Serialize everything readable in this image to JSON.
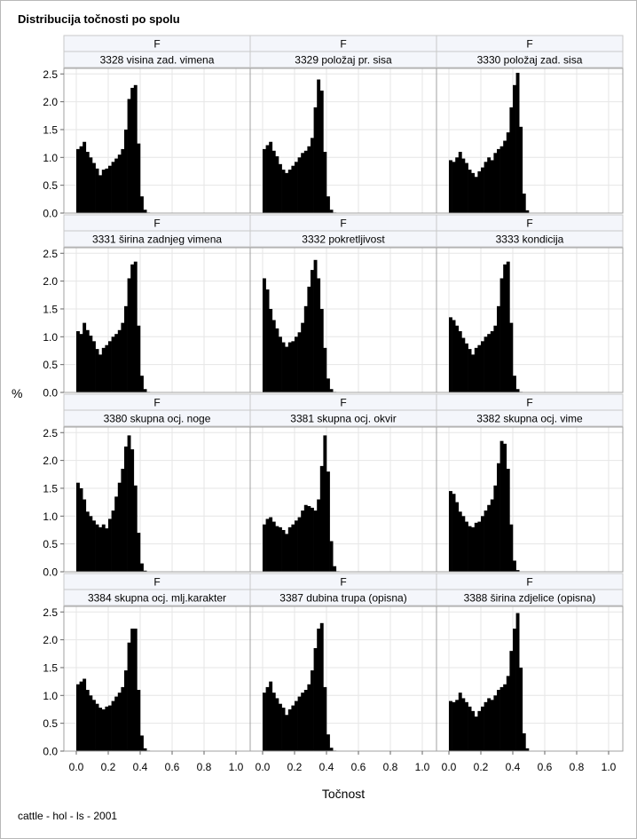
{
  "title": "Distribucija točnosti po spolu",
  "footnote": "cattle - hol - ls - 2001",
  "colors": {
    "bar": "#000000",
    "header_bg": "#f4f6fb",
    "grid": "#e6e6e6",
    "border": "#a0a0a0"
  },
  "chart_data": {
    "type": "bar",
    "layout": "panel 4x3 histograms",
    "xlabel": "Točnost",
    "ylabel": "%",
    "xlim": [
      0.0,
      1.0
    ],
    "ylim": [
      0.0,
      2.6
    ],
    "xticks": [
      "0.0",
      "0.2",
      "0.4",
      "0.6",
      "0.8",
      "1.0"
    ],
    "yticks": [
      "0.0",
      "0.5",
      "1.0",
      "1.5",
      "2.0",
      "2.5"
    ],
    "panels": [
      {
        "group": "F",
        "name": "3328 visina zad. vimena",
        "x": [
          0.0,
          0.02,
          0.04,
          0.06,
          0.08,
          0.1,
          0.12,
          0.14,
          0.16,
          0.18,
          0.2,
          0.22,
          0.24,
          0.26,
          0.28,
          0.3,
          0.32,
          0.34,
          0.36,
          0.38,
          0.4,
          0.42,
          0.44
        ],
        "values": [
          1.15,
          1.2,
          1.28,
          1.1,
          1.0,
          0.9,
          0.8,
          0.68,
          0.78,
          0.8,
          0.85,
          0.92,
          0.98,
          1.05,
          1.15,
          1.5,
          2.05,
          2.25,
          2.3,
          1.25,
          0.3,
          0.06,
          0.01
        ]
      },
      {
        "group": "F",
        "name": "3329 položaj pr. sisa",
        "x": [
          0.0,
          0.02,
          0.04,
          0.06,
          0.08,
          0.1,
          0.12,
          0.14,
          0.16,
          0.18,
          0.2,
          0.22,
          0.24,
          0.26,
          0.28,
          0.3,
          0.32,
          0.34,
          0.36,
          0.38,
          0.4,
          0.42,
          0.44
        ],
        "values": [
          1.15,
          1.22,
          1.28,
          1.12,
          1.02,
          0.88,
          0.78,
          0.72,
          0.78,
          0.85,
          0.92,
          1.0,
          1.08,
          1.12,
          1.2,
          1.35,
          1.9,
          2.4,
          2.2,
          1.1,
          0.3,
          0.06,
          0.01
        ]
      },
      {
        "group": "F",
        "name": "3330 položaj zad. sisa",
        "x": [
          0.0,
          0.02,
          0.04,
          0.06,
          0.08,
          0.1,
          0.12,
          0.14,
          0.16,
          0.18,
          0.2,
          0.22,
          0.24,
          0.26,
          0.28,
          0.3,
          0.32,
          0.34,
          0.36,
          0.38,
          0.4,
          0.42,
          0.44,
          0.46,
          0.48
        ],
        "values": [
          0.95,
          0.92,
          1.0,
          1.1,
          0.98,
          0.9,
          0.78,
          0.72,
          0.65,
          0.75,
          0.82,
          0.92,
          1.0,
          0.95,
          1.08,
          1.15,
          1.2,
          1.3,
          1.45,
          1.9,
          2.3,
          2.52,
          1.55,
          0.35,
          0.05
        ]
      },
      {
        "group": "F",
        "name": "3331 širina zadnjeg vimena",
        "x": [
          0.0,
          0.02,
          0.04,
          0.06,
          0.08,
          0.1,
          0.12,
          0.14,
          0.16,
          0.18,
          0.2,
          0.22,
          0.24,
          0.26,
          0.28,
          0.3,
          0.32,
          0.34,
          0.36,
          0.38,
          0.4,
          0.42,
          0.44
        ],
        "values": [
          1.1,
          1.05,
          1.25,
          1.12,
          1.02,
          0.92,
          0.78,
          0.68,
          0.8,
          0.85,
          0.92,
          1.0,
          1.05,
          1.12,
          1.25,
          1.55,
          2.05,
          2.3,
          2.35,
          1.2,
          0.3,
          0.06,
          0.01
        ]
      },
      {
        "group": "F",
        "name": "3332 pokretljivost",
        "x": [
          0.0,
          0.02,
          0.04,
          0.06,
          0.08,
          0.1,
          0.12,
          0.14,
          0.16,
          0.18,
          0.2,
          0.22,
          0.24,
          0.26,
          0.28,
          0.3,
          0.32,
          0.34,
          0.36,
          0.38,
          0.4,
          0.42,
          0.44
        ],
        "values": [
          2.05,
          1.85,
          1.5,
          1.3,
          1.15,
          1.0,
          0.9,
          0.82,
          0.9,
          0.92,
          1.0,
          1.08,
          1.25,
          1.55,
          1.9,
          2.2,
          2.38,
          2.05,
          1.5,
          0.8,
          0.25,
          0.06,
          0.01
        ]
      },
      {
        "group": "F",
        "name": "3333 kondicija",
        "x": [
          0.0,
          0.02,
          0.04,
          0.06,
          0.08,
          0.1,
          0.12,
          0.14,
          0.16,
          0.18,
          0.2,
          0.22,
          0.24,
          0.26,
          0.28,
          0.3,
          0.32,
          0.34,
          0.36,
          0.38,
          0.4,
          0.42,
          0.44
        ],
        "values": [
          1.35,
          1.3,
          1.2,
          1.1,
          0.98,
          0.88,
          0.78,
          0.68,
          0.8,
          0.85,
          0.92,
          1.0,
          1.05,
          1.1,
          1.2,
          1.55,
          2.05,
          2.3,
          2.35,
          1.25,
          0.3,
          0.06,
          0.01
        ]
      },
      {
        "group": "F",
        "name": "3380 skupna ocj. noge",
        "x": [
          0.0,
          0.02,
          0.04,
          0.06,
          0.08,
          0.1,
          0.12,
          0.14,
          0.16,
          0.18,
          0.2,
          0.22,
          0.24,
          0.26,
          0.28,
          0.3,
          0.32,
          0.34,
          0.36,
          0.38,
          0.4,
          0.42
        ],
        "values": [
          1.6,
          1.5,
          1.3,
          1.08,
          1.0,
          0.92,
          0.85,
          0.8,
          0.85,
          0.78,
          0.95,
          1.1,
          1.35,
          1.6,
          1.85,
          2.25,
          2.45,
          2.2,
          1.55,
          0.7,
          0.15,
          0.02
        ]
      },
      {
        "group": "F",
        "name": "3381 skupna ocj. okvir",
        "x": [
          0.0,
          0.02,
          0.04,
          0.06,
          0.08,
          0.1,
          0.12,
          0.14,
          0.16,
          0.18,
          0.2,
          0.22,
          0.24,
          0.26,
          0.28,
          0.3,
          0.32,
          0.34,
          0.36,
          0.38,
          0.4,
          0.42,
          0.44,
          0.46
        ],
        "values": [
          0.85,
          0.95,
          0.98,
          0.9,
          0.82,
          0.8,
          0.75,
          0.68,
          0.8,
          0.85,
          0.92,
          0.98,
          1.1,
          1.2,
          1.18,
          1.15,
          1.1,
          1.3,
          1.9,
          2.45,
          1.8,
          0.55,
          0.1,
          0.01
        ]
      },
      {
        "group": "F",
        "name": "3382 skupna ocj. vime",
        "x": [
          0.0,
          0.02,
          0.04,
          0.06,
          0.08,
          0.1,
          0.12,
          0.14,
          0.16,
          0.18,
          0.2,
          0.22,
          0.24,
          0.26,
          0.28,
          0.3,
          0.32,
          0.34,
          0.36,
          0.38,
          0.4,
          0.42
        ],
        "values": [
          1.45,
          1.4,
          1.25,
          1.08,
          1.0,
          0.9,
          0.82,
          0.8,
          0.88,
          0.9,
          1.0,
          1.1,
          1.2,
          1.3,
          1.55,
          1.95,
          2.35,
          2.3,
          1.85,
          0.85,
          0.2,
          0.03
        ]
      },
      {
        "group": "F",
        "name": "3384 skupna ocj. mlj.karakter",
        "x": [
          0.0,
          0.02,
          0.04,
          0.06,
          0.08,
          0.1,
          0.12,
          0.14,
          0.16,
          0.18,
          0.2,
          0.22,
          0.24,
          0.26,
          0.28,
          0.3,
          0.32,
          0.34,
          0.36,
          0.38,
          0.4,
          0.42,
          0.44
        ],
        "values": [
          1.2,
          1.25,
          1.3,
          1.1,
          1.0,
          0.92,
          0.85,
          0.78,
          0.75,
          0.8,
          0.82,
          0.9,
          0.98,
          1.05,
          1.15,
          1.45,
          1.95,
          2.2,
          2.2,
          1.1,
          0.28,
          0.05,
          0.01
        ]
      },
      {
        "group": "F",
        "name": "3387 dubina trupa (opisna)",
        "x": [
          0.0,
          0.02,
          0.04,
          0.06,
          0.08,
          0.1,
          0.12,
          0.14,
          0.16,
          0.18,
          0.2,
          0.22,
          0.24,
          0.26,
          0.28,
          0.3,
          0.32,
          0.34,
          0.36,
          0.38,
          0.4,
          0.42,
          0.44
        ],
        "values": [
          1.05,
          1.15,
          1.25,
          1.05,
          0.95,
          0.85,
          0.78,
          0.65,
          0.75,
          0.82,
          0.9,
          0.98,
          1.05,
          1.1,
          1.2,
          1.45,
          1.85,
          2.2,
          2.3,
          1.15,
          0.3,
          0.06,
          0.01
        ]
      },
      {
        "group": "F",
        "name": "3388 širina zdjelice (opisna)",
        "x": [
          0.0,
          0.02,
          0.04,
          0.06,
          0.08,
          0.1,
          0.12,
          0.14,
          0.16,
          0.18,
          0.2,
          0.22,
          0.24,
          0.26,
          0.28,
          0.3,
          0.32,
          0.34,
          0.36,
          0.38,
          0.4,
          0.42,
          0.44,
          0.46,
          0.48
        ],
        "values": [
          0.9,
          0.88,
          0.92,
          1.05,
          0.95,
          0.88,
          0.8,
          0.72,
          0.62,
          0.72,
          0.8,
          0.88,
          0.95,
          0.92,
          1.0,
          1.1,
          1.15,
          1.2,
          1.35,
          1.8,
          2.2,
          2.48,
          1.5,
          0.32,
          0.05
        ]
      }
    ]
  }
}
